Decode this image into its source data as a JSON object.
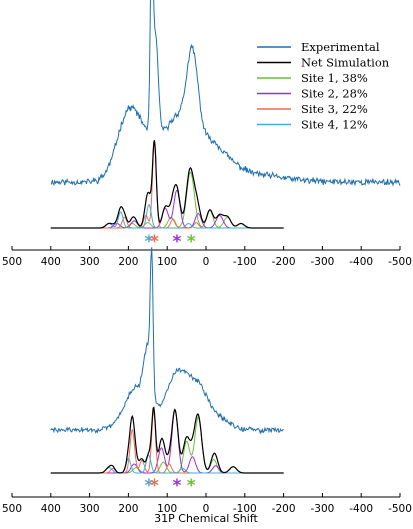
{
  "chart_data": [
    {
      "type": "line",
      "title": "",
      "xlabel": "",
      "xlim": [
        500,
        -500
      ],
      "x_ticks": [
        "500",
        "400",
        "300",
        "200",
        "100",
        "0",
        "-100",
        "-200",
        "-300",
        "-400",
        "-500"
      ],
      "grid": false,
      "legend_position": "top-right",
      "legend": [
        {
          "label": "Experimental",
          "color": "#1f6fb0"
        },
        {
          "label": "Net Simulation",
          "color": "#000000"
        },
        {
          "label": "Site 1, 38%",
          "color": "#6cbf3a"
        },
        {
          "label": "Site 2, 28%",
          "color": "#9b30d9"
        },
        {
          "label": "Site 3, 22%",
          "color": "#f06a52"
        },
        {
          "label": "Site 4, 12%",
          "color": "#3fb0d0"
        }
      ],
      "site_markers": [
        {
          "label": "*",
          "x": 147,
          "color": "#3fb0d0"
        },
        {
          "label": "*",
          "x": 133,
          "color": "#f06a52"
        },
        {
          "label": "*",
          "x": 75,
          "color": "#9b30d9"
        },
        {
          "label": "*",
          "x": 38,
          "color": "#6cbf3a"
        }
      ],
      "experimental": {
        "x_range": [
          400,
          -500
        ],
        "baseline": 0.28,
        "noise": 0.015,
        "peaks": [
          [
            140,
            1.0,
            3.5
          ],
          [
            130,
            0.55,
            7
          ],
          [
            200,
            0.35,
            30
          ],
          [
            120,
            0.25,
            50
          ],
          [
            35,
            0.55,
            15
          ],
          [
            70,
            0.2,
            22
          ],
          [
            0,
            0.15,
            30
          ],
          [
            -40,
            0.1,
            40
          ],
          [
            -120,
            0.04,
            80
          ]
        ]
      },
      "sites": [
        {
          "name": "Site 1, 38%",
          "color": "#6cbf3a",
          "peaks": [
            [
              40,
              0.62,
              10
            ],
            [
              -10,
              0.2,
              8
            ],
            [
              90,
              0.12,
              8
            ],
            [
              -55,
              0.12,
              9
            ],
            [
              -90,
              0.05,
              9
            ],
            [
              150,
              0.06,
              8
            ],
            [
              190,
              0.05,
              8
            ]
          ]
        },
        {
          "name": "Site 2, 28%",
          "color": "#9b30d9",
          "peaks": [
            [
              75,
              0.42,
              8
            ],
            [
              105,
              0.22,
              8
            ],
            [
              20,
              0.16,
              8
            ],
            [
              -35,
              0.14,
              9
            ],
            [
              185,
              0.08,
              8
            ],
            [
              230,
              0.05,
              8
            ]
          ]
        },
        {
          "name": "Site 3, 22%",
          "color": "#f06a52",
          "peaks": [
            [
              133,
              0.95,
              5
            ],
            [
              155,
              0.14,
              6
            ],
            [
              210,
              0.12,
              6
            ],
            [
              85,
              0.1,
              6
            ],
            [
              25,
              0.06,
              6
            ]
          ]
        },
        {
          "name": "Site 4, 12%",
          "color": "#3fb0d0",
          "peaks": [
            [
              147,
              0.26,
              6
            ],
            [
              220,
              0.18,
              6
            ],
            [
              250,
              0.05,
              8
            ],
            [
              45,
              0.05,
              7
            ]
          ]
        }
      ]
    },
    {
      "type": "line",
      "title": "",
      "xlabel": "31P Chemical Shift",
      "xlim": [
        500,
        -500
      ],
      "x_ticks": [
        "500",
        "400",
        "300",
        "200",
        "100",
        "0",
        "-100",
        "-200",
        "-300",
        "-400",
        "-500"
      ],
      "grid": false,
      "site_markers": [
        {
          "label": "*",
          "x": 147,
          "color": "#3fb0d0"
        },
        {
          "label": "*",
          "x": 133,
          "color": "#f06a52"
        },
        {
          "label": "*",
          "x": 75,
          "color": "#9b30d9"
        },
        {
          "label": "*",
          "x": 38,
          "color": "#6cbf3a"
        }
      ],
      "experimental": {
        "x_range": [
          400,
          -200
        ],
        "baseline": 0.22,
        "noise": 0.015,
        "peaks": [
          [
            140,
            0.9,
            3.5
          ],
          [
            150,
            0.4,
            10
          ],
          [
            75,
            0.4,
            30
          ],
          [
            180,
            0.3,
            30
          ],
          [
            20,
            0.25,
            25
          ],
          [
            -30,
            0.08,
            30
          ]
        ]
      },
      "sites": [
        {
          "name": "Site 1, 38%",
          "color": "#6cbf3a",
          "peaks": [
            [
              20,
              0.62,
              9
            ],
            [
              50,
              0.35,
              8
            ],
            [
              -20,
              0.15,
              8
            ],
            [
              110,
              0.12,
              8
            ],
            [
              -70,
              0.07,
              9
            ],
            [
              180,
              0.06,
              8
            ]
          ]
        },
        {
          "name": "Site 2, 28%",
          "color": "#9b30d9",
          "peaks": [
            [
              80,
              0.7,
              8
            ],
            [
              115,
              0.28,
              8
            ],
            [
              35,
              0.18,
              8
            ],
            [
              185,
              0.1,
              8
            ],
            [
              -25,
              0.08,
              8
            ]
          ]
        },
        {
          "name": "Site 3, 22%",
          "color": "#f06a52",
          "peaks": [
            [
              135,
              0.7,
              5
            ],
            [
              190,
              0.48,
              6
            ],
            [
              165,
              0.14,
              6
            ],
            [
              95,
              0.1,
              6
            ],
            [
              240,
              0.05,
              6
            ]
          ]
        },
        {
          "name": "Site 4, 12%",
          "color": "#3fb0d0",
          "peaks": [
            [
              148,
              0.2,
              6
            ],
            [
              200,
              0.16,
              6
            ],
            [
              250,
              0.06,
              8
            ],
            [
              60,
              0.05,
              7
            ]
          ]
        }
      ]
    }
  ]
}
